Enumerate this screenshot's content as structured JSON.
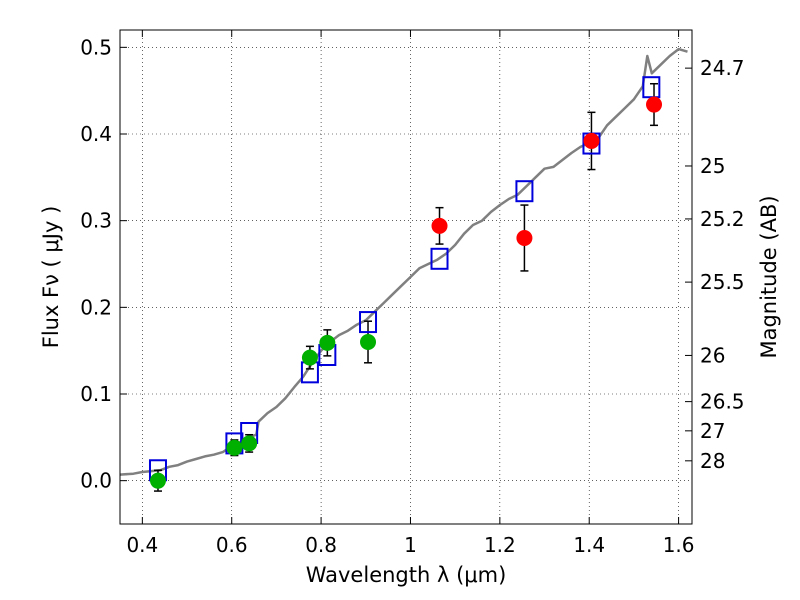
{
  "chart_data": {
    "type": "scatter",
    "title": "",
    "xlabel": "Wavelength  λ (μm)",
    "ylabel": "Flux  Fν  ( μJy )",
    "y2label": "Magnitude (AB)",
    "xlim": [
      0.35,
      1.63
    ],
    "ylim": [
      -0.05,
      0.52
    ],
    "grid": true,
    "x_ticks": [
      0.4,
      0.6,
      0.8,
      1.0,
      1.2,
      1.4,
      1.6
    ],
    "x_tick_labels": [
      "0.4",
      "0.6",
      "0.8",
      "1",
      "1.2",
      "1.4",
      "1.6"
    ],
    "y_ticks": [
      0.0,
      0.1,
      0.2,
      0.3,
      0.4,
      0.5
    ],
    "y_tick_labels": [
      "0.0",
      "0.1",
      "0.2",
      "0.3",
      "0.4",
      "0.5"
    ],
    "mag_ticks": [
      {
        "label": "24.7",
        "flux": 0.476
      },
      {
        "label": "25",
        "flux": 0.3631
      },
      {
        "label": "25.2",
        "flux": 0.302
      },
      {
        "label": "25.5",
        "flux": 0.2291
      },
      {
        "label": "26",
        "flux": 0.1445
      },
      {
        "label": "26.5",
        "flux": 0.0912
      },
      {
        "label": "27",
        "flux": 0.0575
      },
      {
        "label": "28",
        "flux": 0.0229
      }
    ],
    "colors": {
      "model": "#808080",
      "model_photometry": "#0000dd",
      "optical_points": "#00b000",
      "nir_points": "#ff0000",
      "errorbar": "#000000"
    },
    "series": [
      {
        "kind": "model_spectrum",
        "x": [
          0.35,
          0.38,
          0.4,
          0.42,
          0.44,
          0.46,
          0.48,
          0.5,
          0.52,
          0.54,
          0.56,
          0.58,
          0.6,
          0.62,
          0.64,
          0.655,
          0.66,
          0.68,
          0.7,
          0.72,
          0.74,
          0.76,
          0.78,
          0.8,
          0.82,
          0.84,
          0.86,
          0.88,
          0.9,
          0.92,
          0.94,
          0.96,
          0.98,
          1.0,
          1.02,
          1.04,
          1.06,
          1.08,
          1.1,
          1.12,
          1.14,
          1.16,
          1.18,
          1.2,
          1.22,
          1.24,
          1.26,
          1.28,
          1.3,
          1.32,
          1.34,
          1.36,
          1.38,
          1.4,
          1.42,
          1.44,
          1.46,
          1.48,
          1.5,
          1.52,
          1.53,
          1.54,
          1.56,
          1.58,
          1.6,
          1.62
        ],
        "y": [
          0.007,
          0.008,
          0.01,
          0.011,
          0.012,
          0.016,
          0.018,
          0.022,
          0.025,
          0.028,
          0.03,
          0.033,
          0.04,
          0.045,
          0.05,
          0.053,
          0.068,
          0.078,
          0.085,
          0.095,
          0.108,
          0.12,
          0.136,
          0.15,
          0.16,
          0.168,
          0.173,
          0.18,
          0.185,
          0.195,
          0.205,
          0.215,
          0.225,
          0.235,
          0.245,
          0.25,
          0.255,
          0.262,
          0.272,
          0.285,
          0.295,
          0.3,
          0.31,
          0.318,
          0.325,
          0.33,
          0.34,
          0.35,
          0.36,
          0.362,
          0.37,
          0.378,
          0.385,
          0.39,
          0.395,
          0.41,
          0.42,
          0.43,
          0.44,
          0.455,
          0.49,
          0.47,
          0.48,
          0.49,
          0.498,
          0.495
        ]
      },
      {
        "kind": "model_photometry",
        "x": [
          0.435,
          0.606,
          0.639,
          0.775,
          0.814,
          0.905,
          1.065,
          1.255,
          1.405,
          1.539
        ],
        "y": [
          0.012,
          0.043,
          0.055,
          0.125,
          0.145,
          0.183,
          0.256,
          0.334,
          0.389,
          0.454
        ]
      },
      {
        "kind": "observed_optical",
        "x": [
          0.435,
          0.606,
          0.639,
          0.775,
          0.814,
          0.905
        ],
        "y": [
          0.0,
          0.038,
          0.043,
          0.142,
          0.159,
          0.16
        ],
        "yerr": [
          0.012,
          0.009,
          0.01,
          0.013,
          0.015,
          0.024
        ]
      },
      {
        "kind": "observed_nir",
        "x": [
          1.065,
          1.255,
          1.405,
          1.545
        ],
        "y": [
          0.294,
          0.28,
          0.392,
          0.434
        ],
        "yerr": [
          0.021,
          0.038,
          0.033,
          0.024
        ]
      }
    ]
  }
}
